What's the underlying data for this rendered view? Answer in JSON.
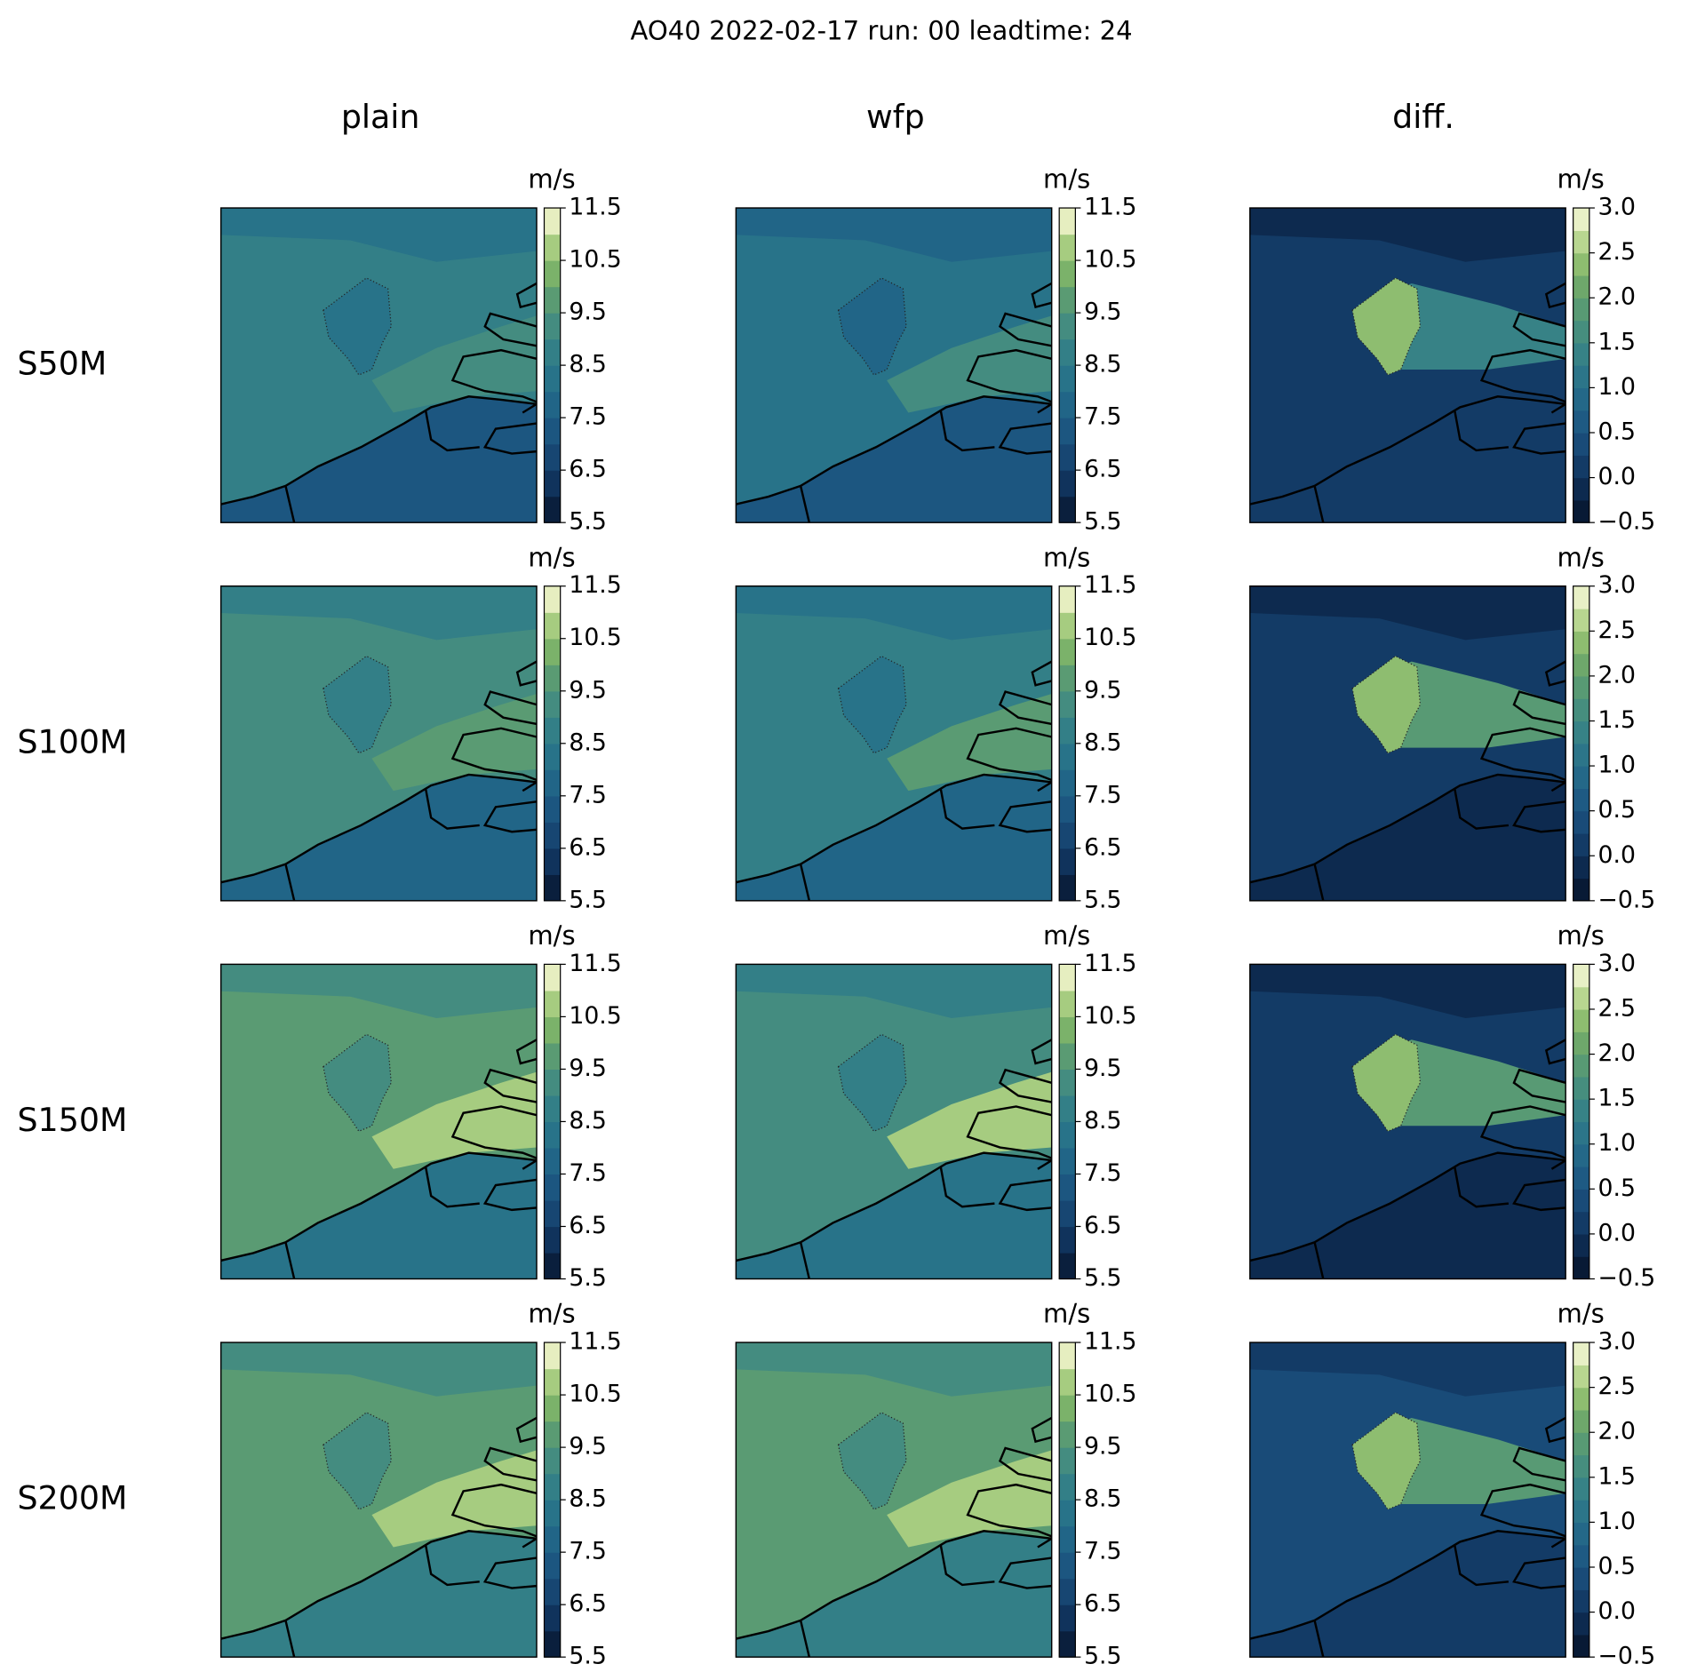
{
  "title": "AO40 2022-02-17 run: 00 leadtime: 24",
  "columns": [
    "plain",
    "wfp",
    "diff."
  ],
  "rows": [
    "S50M",
    "S100M",
    "S150M",
    "S200M"
  ],
  "unit": "m/s",
  "colorbars": [
    {
      "lim": [
        5.5,
        11.5
      ],
      "ticks": [
        5.5,
        6.5,
        7.5,
        8.5,
        9.5,
        10.5,
        11.5
      ],
      "colors": [
        "#0a1f3d",
        "#10335c",
        "#174672",
        "#1c5680",
        "#216587",
        "#287389",
        "#337f87",
        "#448c80",
        "#5a9b73",
        "#7bb26a",
        "#a6cc80",
        "#e6eec0"
      ]
    },
    {
      "lim": [
        -0.5,
        3
      ],
      "ticks": [
        {
          "value": -0.5,
          "label": "−0.5"
        },
        {
          "value": 0,
          "label": "0.0"
        },
        0.5,
        {
          "value": 1,
          "label": "1.0"
        },
        1.5,
        {
          "value": 2,
          "label": "2.0"
        },
        2.5,
        {
          "value": 3,
          "label": "3.0"
        }
      ],
      "colors": [
        "#081a35",
        "#0d2a4f",
        "#133b66",
        "#194b78",
        "#1e5a83",
        "#246888",
        "#2c7589",
        "#378286",
        "#468e7e",
        "#589a74",
        "#6ea86b",
        "#8ebd70",
        "#b8d690",
        "#e8f0c6"
      ]
    }
  ]
}
